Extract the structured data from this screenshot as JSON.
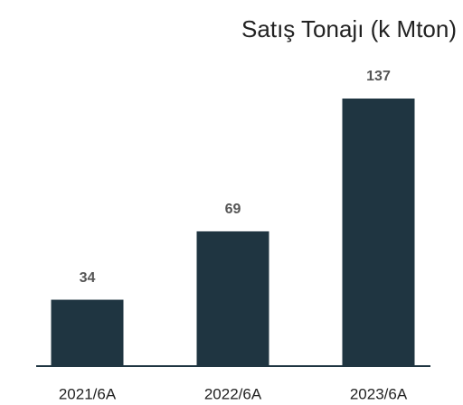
{
  "chart_data": {
    "type": "bar",
    "title": "Satış Tonajı (k Mton)",
    "categories": [
      "2021/6A",
      "2022/6A",
      "2023/6A"
    ],
    "values": [
      34,
      69,
      137
    ],
    "color": "#1f3541"
  }
}
